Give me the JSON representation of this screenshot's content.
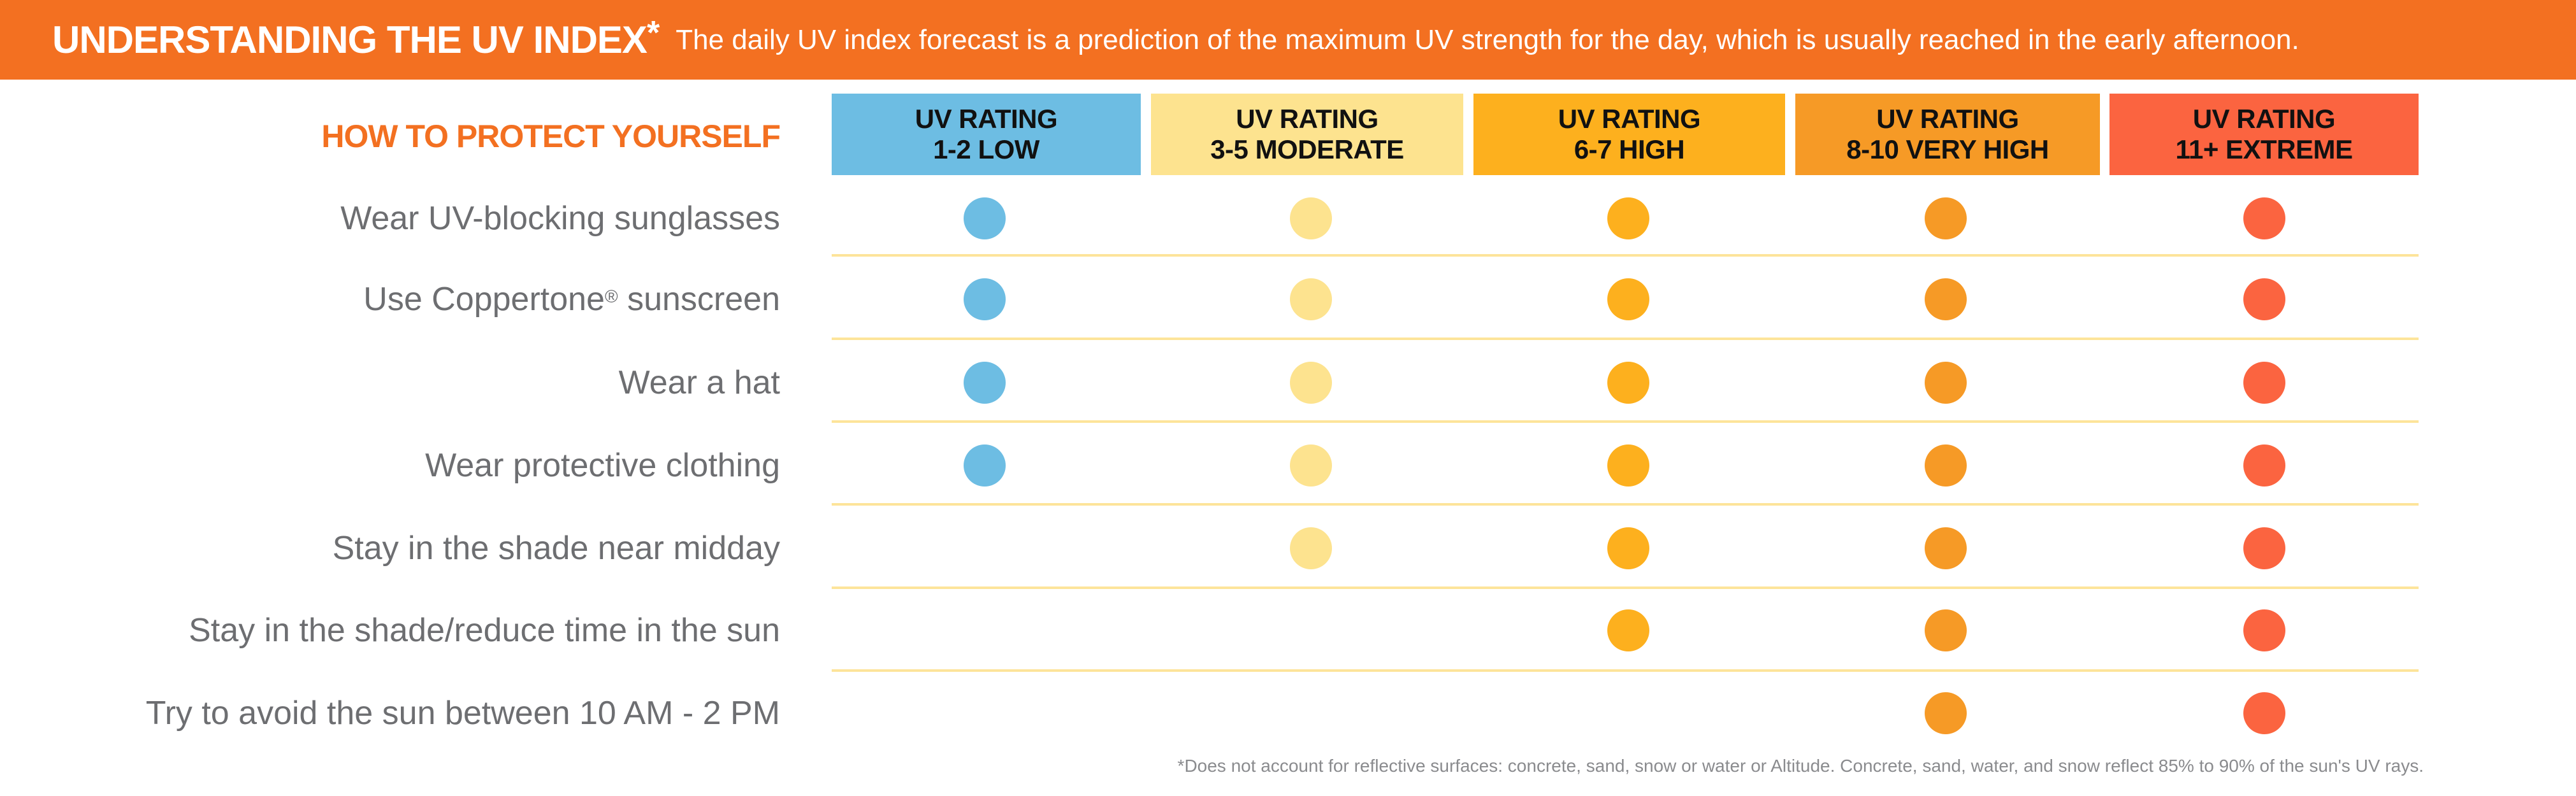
{
  "banner": {
    "title_bold": "UNDERSTANDING",
    "title_rest": "THE UV INDEX",
    "title_star": "*",
    "description": "The daily UV index forecast is a prediction of the maximum UV strength for the day, which is usually reached in the early afternoon."
  },
  "section_heading": "HOW TO PROTECT YOURSELF",
  "columns": [
    {
      "line1": "UV RATING",
      "line2": "1-2 LOW",
      "color": "#6dbde3"
    },
    {
      "line1": "UV RATING",
      "line2": "3-5 MODERATE",
      "color": "#fde38f"
    },
    {
      "line1": "UV RATING",
      "line2": "6-7 HIGH",
      "color": "#fdb01e"
    },
    {
      "line1": "UV RATING",
      "line2": "8-10 VERY HIGH",
      "color": "#f69a26"
    },
    {
      "line1": "UV RATING",
      "line2": "11+ EXTREME",
      "color": "#fb6440"
    }
  ],
  "rows": [
    {
      "label": "Wear UV-blocking sunglasses",
      "sup": "",
      "suffix": "",
      "marks": [
        true,
        true,
        true,
        true,
        true
      ]
    },
    {
      "label": "Use Coppertone",
      "sup": "®",
      "suffix": " sunscreen",
      "marks": [
        true,
        true,
        true,
        true,
        true
      ]
    },
    {
      "label": "Wear a hat",
      "sup": "",
      "suffix": "",
      "marks": [
        true,
        true,
        true,
        true,
        true
      ]
    },
    {
      "label": "Wear protective clothing",
      "sup": "",
      "suffix": "",
      "marks": [
        true,
        true,
        true,
        true,
        true
      ]
    },
    {
      "label": "Stay in the shade near midday",
      "sup": "",
      "suffix": "",
      "marks": [
        false,
        true,
        true,
        true,
        true
      ]
    },
    {
      "label": "Stay in the shade/reduce time in the sun",
      "sup": "",
      "suffix": "",
      "marks": [
        false,
        false,
        true,
        true,
        true
      ]
    },
    {
      "label": "Try to avoid the sun between 10 AM - 2 PM",
      "sup": "",
      "suffix": "",
      "marks": [
        false,
        false,
        false,
        true,
        true
      ]
    }
  ],
  "footnote": "*Does not account for reflective surfaces: concrete, sand, snow or water or Altitude. Concrete, sand, water, and snow reflect 85% to 90% of the sun's UV rays.",
  "colors": {
    "brand_orange": "#f37021",
    "divider": "#fde49a",
    "label_gray": "#6d6e71"
  }
}
